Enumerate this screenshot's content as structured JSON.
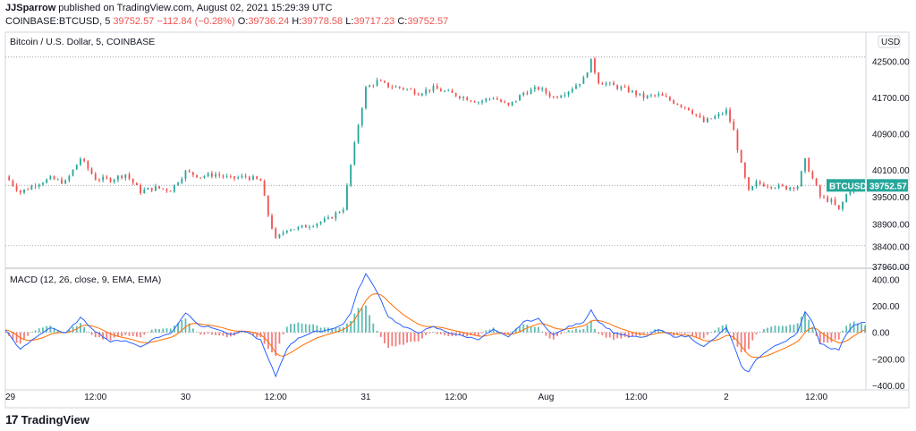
{
  "header": {
    "publisher": "JJSparrow",
    "published_text": " published on TradingView.com, August 02, 2021 15:29:39 UTC",
    "symbol": "COINBASE:BTCUSD, 5",
    "last": "39752.57",
    "change": "−112.84 (−0.28%)",
    "o_label": "O:",
    "o": "39736.24",
    "h_label": "H:",
    "h": "39778.58",
    "l_label": "L:",
    "l": "39717.23",
    "c_label": "C:",
    "c": "39752.57"
  },
  "footer": {
    "brand": "TradingView",
    "logo": "17"
  },
  "colors": {
    "up": "#26a69a",
    "down": "#ef5350",
    "macd": "#2962ff",
    "signal": "#ff6d00",
    "grid": "#e0e3eb"
  },
  "chart_data": [
    {
      "type": "candlestick",
      "title": "Bitcoin / U.S. Dollar, 5, COINBASE",
      "currency": "USD",
      "last_label": "BTCUSD",
      "last_value": "39752.57",
      "last_price": 39752.57,
      "ylim": [
        37960,
        43100
      ],
      "y_ticks": [
        "42500.00",
        "41700.00",
        "40900.00",
        "40100.00",
        "39500.00",
        "38900.00",
        "38400.00",
        "37960.00"
      ],
      "y_tick_values": [
        42500,
        41700,
        40900,
        40100,
        39500,
        38900,
        38400,
        37960
      ],
      "x_ticks": [
        "29",
        "12:00",
        "30",
        "12:00",
        "31",
        "12:00",
        "Aug",
        "12:00",
        "2",
        "12:00"
      ],
      "x_tick_hours": [
        0,
        12,
        24,
        36,
        48,
        60,
        72,
        84,
        96,
        108
      ],
      "x_range_hours": [
        0,
        114.6
      ],
      "dotted_levels": [
        42590,
        39752.57,
        38420
      ],
      "path_points": [
        [
          0,
          39950
        ],
        [
          2,
          39600
        ],
        [
          4,
          39780
        ],
        [
          6,
          39900
        ],
        [
          8,
          39820
        ],
        [
          10,
          40350
        ],
        [
          12,
          39900
        ],
        [
          14,
          39880
        ],
        [
          16,
          40000
        ],
        [
          18,
          39620
        ],
        [
          20,
          39700
        ],
        [
          22,
          39650
        ],
        [
          24,
          40050
        ],
        [
          26,
          39950
        ],
        [
          28,
          40000
        ],
        [
          30,
          39900
        ],
        [
          32,
          39950
        ],
        [
          34,
          39850
        ],
        [
          35,
          39100
        ],
        [
          36,
          38550
        ],
        [
          37.5,
          38800
        ],
        [
          39,
          38800
        ],
        [
          41,
          38900
        ],
        [
          43,
          39000
        ],
        [
          45,
          39250
        ],
        [
          46,
          40200
        ],
        [
          47,
          41100
        ],
        [
          48,
          41900
        ],
        [
          49.5,
          42050
        ],
        [
          51,
          41950
        ],
        [
          53,
          41900
        ],
        [
          55,
          41800
        ],
        [
          57,
          41900
        ],
        [
          59,
          41800
        ],
        [
          61,
          41700
        ],
        [
          63,
          41600
        ],
        [
          65,
          41700
        ],
        [
          67,
          41500
        ],
        [
          69,
          41800
        ],
        [
          71,
          41900
        ],
        [
          73,
          41700
        ],
        [
          75,
          41850
        ],
        [
          77,
          42100
        ],
        [
          78,
          42500
        ],
        [
          79,
          42050
        ],
        [
          81,
          41950
        ],
        [
          83,
          41850
        ],
        [
          85,
          41700
        ],
        [
          87,
          41750
        ],
        [
          89,
          41600
        ],
        [
          91,
          41450
        ],
        [
          93,
          41150
        ],
        [
          95,
          41300
        ],
        [
          96,
          41400
        ],
        [
          97,
          40950
        ],
        [
          98,
          40200
        ],
        [
          99,
          39600
        ],
        [
          100,
          39800
        ],
        [
          102,
          39750
        ],
        [
          104,
          39700
        ],
        [
          105.5,
          39750
        ],
        [
          106.5,
          40300
        ],
        [
          107.5,
          39900
        ],
        [
          108.5,
          39500
        ],
        [
          110,
          39400
        ],
        [
          111,
          39200
        ],
        [
          112,
          39550
        ],
        [
          113,
          39750
        ],
        [
          114.6,
          39750
        ]
      ]
    },
    {
      "type": "macd",
      "title": "MACD (12, 26, close, 9, EMA, EMA)",
      "ylim": [
        -420,
        470
      ],
      "y_ticks": [
        "400.00",
        "200.00",
        "0.00",
        "−200.00",
        "−400.00"
      ],
      "y_tick_values": [
        400,
        200,
        0,
        -200,
        -400
      ],
      "zero_line": 0,
      "macd_points": [
        [
          0,
          20
        ],
        [
          2,
          -130
        ],
        [
          4,
          -40
        ],
        [
          6,
          40
        ],
        [
          8,
          -10
        ],
        [
          10,
          110
        ],
        [
          12,
          10
        ],
        [
          14,
          -70
        ],
        [
          16,
          -60
        ],
        [
          18,
          -110
        ],
        [
          20,
          -40
        ],
        [
          22,
          -10
        ],
        [
          24,
          150
        ],
        [
          26,
          50
        ],
        [
          28,
          30
        ],
        [
          30,
          -20
        ],
        [
          32,
          10
        ],
        [
          34,
          -60
        ],
        [
          35,
          -200
        ],
        [
          36,
          -330
        ],
        [
          37.5,
          -120
        ],
        [
          39,
          -40
        ],
        [
          41,
          0
        ],
        [
          43,
          20
        ],
        [
          45,
          60
        ],
        [
          46,
          150
        ],
        [
          47,
          320
        ],
        [
          48,
          440
        ],
        [
          49.5,
          310
        ],
        [
          51,
          120
        ],
        [
          53,
          40
        ],
        [
          55,
          0
        ],
        [
          57,
          40
        ],
        [
          59,
          0
        ],
        [
          61,
          -30
        ],
        [
          63,
          -50
        ],
        [
          65,
          20
        ],
        [
          67,
          -40
        ],
        [
          69,
          80
        ],
        [
          71,
          100
        ],
        [
          73,
          -20
        ],
        [
          75,
          40
        ],
        [
          77,
          80
        ],
        [
          78,
          170
        ],
        [
          79,
          80
        ],
        [
          81,
          0
        ],
        [
          83,
          -30
        ],
        [
          85,
          -40
        ],
        [
          87,
          20
        ],
        [
          89,
          -30
        ],
        [
          91,
          -30
        ],
        [
          93,
          -110
        ],
        [
          95,
          -20
        ],
        [
          96,
          40
        ],
        [
          97,
          -100
        ],
        [
          98,
          -260
        ],
        [
          99,
          -300
        ],
        [
          100,
          -200
        ],
        [
          102,
          -120
        ],
        [
          104,
          -60
        ],
        [
          105.5,
          0
        ],
        [
          106.5,
          150
        ],
        [
          107.5,
          80
        ],
        [
          108.5,
          -80
        ],
        [
          110,
          -120
        ],
        [
          111,
          -130
        ],
        [
          112,
          -10
        ],
        [
          113,
          60
        ],
        [
          114.6,
          80
        ]
      ]
    }
  ]
}
